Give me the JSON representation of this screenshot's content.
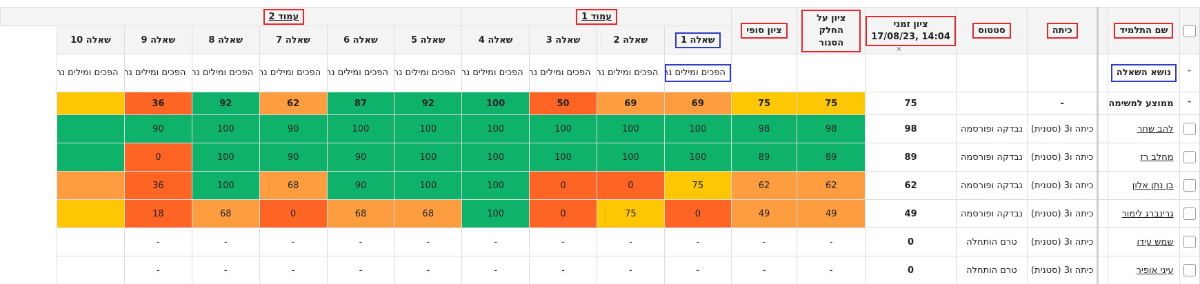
{
  "headers": {
    "student_name": "שם התלמיד",
    "class": "כיתה",
    "status": "סטטוס",
    "timed_grade_line1": "ציון זמני",
    "timed_grade_line2": "17/08/23, 14:04",
    "closed_part_grade": "ציון על החלק הסגור",
    "final_grade": "ציון סופי",
    "question_topic": "נושא השאלה",
    "group_close_mark": "×"
  },
  "groups": [
    {
      "label": "עמוד 1",
      "span": 4
    },
    {
      "label": "עמוד 2",
      "span": 6
    }
  ],
  "questions": [
    "שאלה 1",
    "שאלה 2",
    "שאלה 3",
    "שאלה 4",
    "שאלה 5",
    "שאלה 6",
    "שאלה 7",
    "שאלה 8",
    "שאלה 9",
    "שאלה 10"
  ],
  "topic": "הפכים ומילים נרדפות, לשון",
  "average": {
    "label": "ממוצע למשימה",
    "class": "-",
    "timed_grade": "75",
    "closed_part": "75",
    "final": "75",
    "scores": [
      "69",
      "69",
      "50",
      "100",
      "92",
      "87",
      "62",
      "92",
      "36",
      ""
    ],
    "colors": [
      "orange",
      "orange",
      "red",
      "green",
      "green",
      "green",
      "orange",
      "green",
      "red",
      "yellow"
    ]
  },
  "students": [
    {
      "name": "להב שחר",
      "class": "כיתה ו3 (סטנית)",
      "status": "נבדקה ופורסמה",
      "timed_grade": "98",
      "closed_part": "98",
      "final": "98",
      "scores": [
        "100",
        "100",
        "100",
        "100",
        "100",
        "100",
        "90",
        "100",
        "90",
        ""
      ],
      "colors": [
        "green",
        "green",
        "green",
        "green",
        "green",
        "green",
        "green",
        "green",
        "green",
        "green"
      ]
    },
    {
      "name": "מחלב רז",
      "class": "כיתה ו3 (סטנית)",
      "status": "נבדקה ופורסמה",
      "timed_grade": "89",
      "closed_part": "89",
      "final": "89",
      "scores": [
        "100",
        "100",
        "100",
        "100",
        "100",
        "90",
        "90",
        "100",
        "0",
        ""
      ],
      "colors": [
        "green",
        "green",
        "green",
        "green",
        "green",
        "green",
        "green",
        "green",
        "red",
        "green"
      ]
    },
    {
      "name": "בן נתן אלון",
      "class": "כיתה ו3 (סטנית)",
      "status": "נבדקה ופורסמה",
      "timed_grade": "62",
      "closed_part": "62",
      "final": "62",
      "scores": [
        "75",
        "0",
        "0",
        "100",
        "100",
        "90",
        "68",
        "100",
        "36",
        ""
      ],
      "colors": [
        "yellow",
        "red",
        "red",
        "green",
        "green",
        "green",
        "orange",
        "green",
        "red",
        "orange"
      ]
    },
    {
      "name": "גרינברג לימור",
      "class": "כיתה ו3 (סטנית)",
      "status": "נבדקה ופורסמה",
      "timed_grade": "49",
      "closed_part": "49",
      "final": "49",
      "scores": [
        "0",
        "75",
        "0",
        "100",
        "68",
        "68",
        "0",
        "68",
        "18",
        ""
      ],
      "colors": [
        "red",
        "yellow",
        "red",
        "green",
        "orange",
        "orange",
        "red",
        "orange",
        "red",
        "yellow"
      ]
    },
    {
      "name": "שמש עידו",
      "class": "כיתה ו3 (סטנית)",
      "status": "טרם הותחלה",
      "timed_grade": "0",
      "closed_part": "-",
      "final": "-",
      "scores": [
        "-",
        "-",
        "-",
        "-",
        "-",
        "-",
        "-",
        "-",
        "-",
        ""
      ],
      "colors": [
        "none",
        "none",
        "none",
        "none",
        "none",
        "none",
        "none",
        "none",
        "none",
        "none"
      ]
    },
    {
      "name": "עיני אופיר",
      "class": "כיתה ו3 (סטנית)",
      "status": "טרם הותחלה",
      "timed_grade": "0",
      "closed_part": "-",
      "final": "-",
      "scores": [
        "-",
        "-",
        "-",
        "-",
        "-",
        "-",
        "-",
        "-",
        "-",
        ""
      ],
      "colors": [
        "none",
        "none",
        "none",
        "none",
        "none",
        "none",
        "none",
        "none",
        "none",
        "none"
      ]
    }
  ],
  "colors": {
    "green": "#0fb26a",
    "orange": "#fe9d3f",
    "red": "#fe6423",
    "yellow": "#fdc704",
    "highlight_red": "#e5262b",
    "highlight_blue": "#2f3bc8"
  }
}
